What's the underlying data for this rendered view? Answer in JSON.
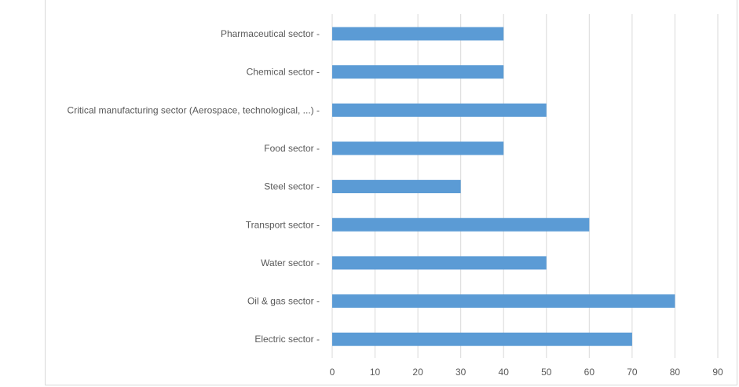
{
  "chart_data": {
    "type": "bar",
    "orientation": "horizontal",
    "title": "",
    "xlabel": "",
    "ylabel": "",
    "categories": [
      "Pharmaceutical sector -",
      "Chemical sector -",
      "Critical manufacturing sector (Aerospace, technological, ...) -",
      "Food sector -",
      "Steel sector -",
      "Transport sector -",
      "Water sector -",
      "Oil & gas sector -",
      "Electric sector -"
    ],
    "values": [
      40,
      40,
      50,
      40,
      30,
      60,
      50,
      80,
      70
    ],
    "xlim": [
      0,
      90
    ],
    "xticks": [
      "0",
      "10",
      "20",
      "30",
      "40",
      "50",
      "60",
      "70",
      "80",
      "90"
    ],
    "grid": "vertical",
    "legend": "none",
    "bar_color": "#5b9bd5",
    "grid_color": "#d9d9d9"
  }
}
